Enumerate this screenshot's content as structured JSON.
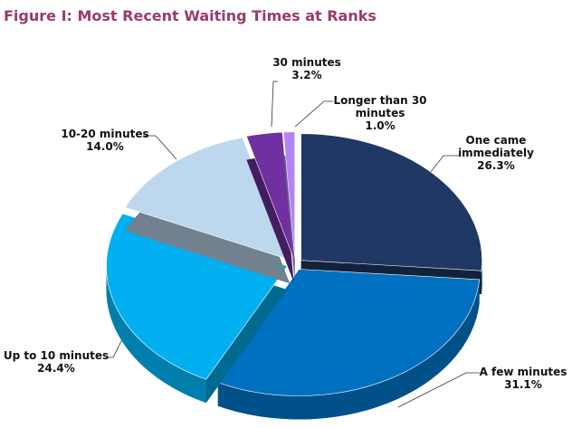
{
  "chart_data": {
    "type": "pie",
    "title": "Figure I: Most Recent Waiting Times at Ranks",
    "categories": [
      "One came immediately",
      "A few minutes",
      "Up to 10 minutes",
      "10-20 minutes",
      "30 minutes",
      "Longer than 30 minutes"
    ],
    "values": [
      26.3,
      31.1,
      24.4,
      14.0,
      3.2,
      1.0
    ],
    "value_labels": [
      "26.3%",
      "31.1%",
      "24.4%",
      "14.0%",
      "3.2%",
      "1.0%"
    ],
    "colors": [
      "#1f3864",
      "#0070c0",
      "#00b0f0",
      "#bdd7ee",
      "#7030a0",
      "#b084f5"
    ]
  }
}
